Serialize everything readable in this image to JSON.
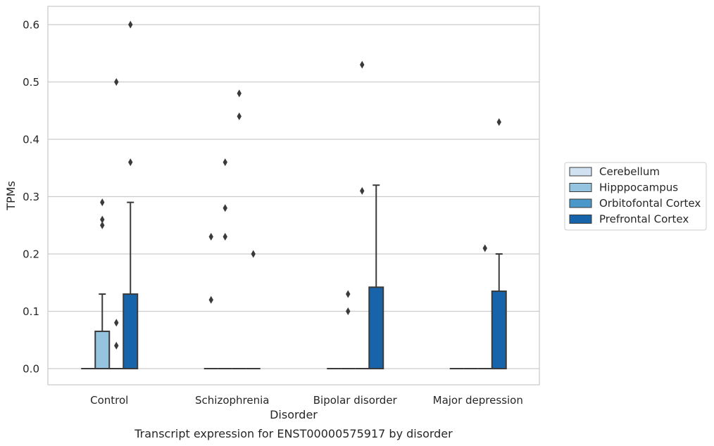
{
  "chart_data": {
    "type": "box",
    "title": "Transcript expression for ENST00000575917 by disorder",
    "xlabel": "Disorder",
    "ylabel": "TPMs",
    "ylim": [
      -0.03,
      0.63
    ],
    "yticks": [
      0.0,
      0.1,
      0.2,
      0.3,
      0.4,
      0.5,
      0.6
    ],
    "ytick_labels": [
      "0.0",
      "0.1",
      "0.2",
      "0.3",
      "0.4",
      "0.5",
      "0.6"
    ],
    "categories": [
      "Control",
      "Schizophrenia",
      "Bipolar disorder",
      "Major depression"
    ],
    "grid": "horizontal",
    "legend_position": "right",
    "series": [
      {
        "name": "Cerebellum",
        "color": "#d0e1f2",
        "boxes": [
          {
            "q1": 0,
            "median": 0,
            "q3": 0,
            "whisker_low": 0,
            "whisker_high": 0,
            "outliers": []
          },
          {
            "q1": 0,
            "median": 0,
            "q3": 0,
            "whisker_low": 0,
            "whisker_high": 0,
            "outliers": [
              0.12,
              0.23
            ]
          },
          {
            "q1": 0,
            "median": 0,
            "q3": 0,
            "whisker_low": 0,
            "whisker_high": 0,
            "outliers": []
          },
          {
            "q1": 0,
            "median": 0,
            "q3": 0,
            "whisker_low": 0,
            "whisker_high": 0,
            "outliers": []
          }
        ]
      },
      {
        "name": "Hipppocampus",
        "color": "#94c4df",
        "boxes": [
          {
            "q1": 0,
            "median": 0,
            "q3": 0.065,
            "whisker_low": 0,
            "whisker_high": 0.13,
            "outliers": [
              0.25,
              0.26,
              0.29
            ]
          },
          {
            "q1": 0,
            "median": 0,
            "q3": 0,
            "whisker_low": 0,
            "whisker_high": 0,
            "outliers": [
              0.23,
              0.28,
              0.36
            ]
          },
          {
            "q1": 0,
            "median": 0,
            "q3": 0,
            "whisker_low": 0,
            "whisker_high": 0,
            "outliers": [
              0.1,
              0.13
            ]
          },
          {
            "q1": 0,
            "median": 0,
            "q3": 0,
            "whisker_low": 0,
            "whisker_high": 0,
            "outliers": []
          }
        ]
      },
      {
        "name": "Orbitofontal Cortex",
        "color": "#4a98c9",
        "boxes": [
          {
            "q1": 0,
            "median": 0,
            "q3": 0,
            "whisker_low": 0,
            "whisker_high": 0,
            "outliers": [
              0.04,
              0.08,
              0.5
            ]
          },
          {
            "q1": 0,
            "median": 0,
            "q3": 0,
            "whisker_low": 0,
            "whisker_high": 0,
            "outliers": [
              0.44,
              0.48
            ]
          },
          {
            "q1": 0,
            "median": 0,
            "q3": 0,
            "whisker_low": 0,
            "whisker_high": 0,
            "outliers": [
              0.31,
              0.53
            ]
          },
          {
            "q1": 0,
            "median": 0,
            "q3": 0,
            "whisker_low": 0,
            "whisker_high": 0,
            "outliers": [
              0.21
            ]
          }
        ]
      },
      {
        "name": "Prefrontal Cortex",
        "color": "#1764ab",
        "boxes": [
          {
            "q1": 0,
            "median": 0,
            "q3": 0.13,
            "whisker_low": 0,
            "whisker_high": 0.29,
            "outliers": [
              0.36,
              0.6
            ]
          },
          {
            "q1": 0,
            "median": 0,
            "q3": 0,
            "whisker_low": 0,
            "whisker_high": 0,
            "outliers": [
              0.2
            ]
          },
          {
            "q1": 0,
            "median": 0,
            "q3": 0.142,
            "whisker_low": 0,
            "whisker_high": 0.32,
            "outliers": []
          },
          {
            "q1": 0,
            "median": 0,
            "q3": 0.135,
            "whisker_low": 0,
            "whisker_high": 0.2,
            "outliers": [
              0.43
            ]
          }
        ]
      }
    ]
  }
}
